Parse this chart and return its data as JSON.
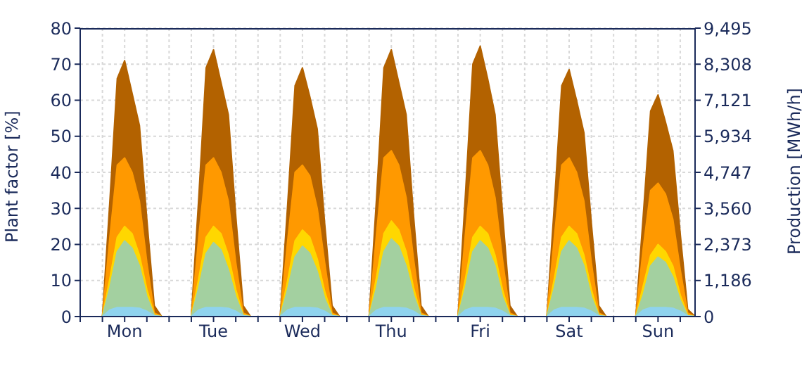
{
  "chart_data": {
    "type": "area",
    "ylabel": "Plant factor [%]",
    "y2label": "Production [MWh/h]",
    "categories": [
      null,
      null,
      null,
      null,
      null,
      null,
      "Mon",
      null,
      null,
      null,
      null,
      null,
      null,
      null,
      null,
      null,
      null,
      null,
      "Tue",
      null,
      null,
      null,
      null,
      null,
      null,
      null,
      null,
      null,
      null,
      null,
      "Wed",
      null,
      null,
      null,
      null,
      null,
      null,
      null,
      null,
      null,
      null,
      null,
      "Thu",
      null,
      null,
      null,
      null,
      null,
      null,
      null,
      null,
      null,
      null,
      null,
      "Fri",
      null,
      null,
      null,
      null,
      null,
      null,
      null,
      null,
      null,
      null,
      null,
      "Sat",
      null,
      null,
      null,
      null,
      null,
      null,
      null,
      null,
      null,
      null,
      null,
      "Sun",
      null,
      null,
      null,
      null,
      null
    ],
    "series": [
      {
        "color": "#b36200",
        "values": [
          0,
          0,
          0,
          0,
          32,
          66,
          71,
          62,
          53,
          27,
          3,
          0,
          0,
          0,
          0,
          0,
          33,
          69,
          74,
          65,
          56,
          28,
          3,
          0,
          0,
          0,
          0,
          0,
          31,
          64,
          69,
          61,
          52,
          26,
          3,
          0,
          0,
          0,
          0,
          0,
          33,
          69,
          74,
          65,
          56,
          28,
          3,
          0,
          0,
          0,
          0,
          0,
          34,
          70,
          75,
          66,
          56,
          29,
          3,
          0,
          0,
          0,
          0,
          0,
          31,
          64,
          68.5,
          60,
          51,
          26,
          3,
          0,
          0,
          0,
          0,
          0,
          28,
          57,
          61.5,
          54,
          46,
          23,
          2,
          0
        ]
      },
      {
        "color": "#ff9900",
        "values": [
          0,
          0,
          0,
          0,
          22,
          42,
          44,
          40,
          32,
          15,
          1,
          0,
          0,
          0,
          0,
          0,
          22,
          42,
          44,
          40,
          32,
          15,
          1,
          0,
          0,
          0,
          0,
          0,
          21,
          40,
          42,
          39,
          30,
          15,
          1,
          0,
          0,
          0,
          0,
          0,
          23,
          44,
          46,
          42,
          33,
          16,
          1,
          0,
          0,
          0,
          0,
          0,
          23,
          44,
          46,
          42,
          33,
          16,
          1,
          0,
          0,
          0,
          0,
          0,
          22,
          42,
          44,
          40,
          32,
          15,
          1,
          0,
          0,
          0,
          0,
          0,
          19,
          35,
          37,
          34,
          27,
          13,
          1,
          0
        ]
      },
      {
        "color": "#ffd700",
        "values": [
          0,
          0,
          0,
          0,
          10.5,
          22,
          25,
          23,
          17,
          7.5,
          0.5,
          0,
          0,
          0,
          0,
          0,
          10.5,
          22,
          25,
          23,
          17,
          7.5,
          0.5,
          0,
          0,
          0,
          0,
          0,
          10,
          21,
          24,
          22,
          16,
          7,
          0.5,
          0,
          0,
          0,
          0,
          0,
          11,
          23,
          26.5,
          24,
          18,
          8,
          0.5,
          0,
          0,
          0,
          0,
          0,
          10.5,
          22,
          25,
          23,
          17,
          7.5,
          0.5,
          0,
          0,
          0,
          0,
          0,
          10.5,
          22,
          25,
          23,
          17,
          7.5,
          0.5,
          0,
          0,
          0,
          0,
          0,
          8.5,
          17,
          20,
          18,
          14,
          6,
          0.4,
          0
        ]
      },
      {
        "color": "#a3d0a0",
        "values": [
          0,
          0,
          0,
          0,
          8,
          18,
          21,
          19,
          14,
          5.5,
          0.3,
          0,
          0,
          0,
          0,
          0,
          8,
          17.5,
          20.5,
          18.5,
          13,
          5.5,
          0.3,
          0,
          0,
          0,
          0,
          0,
          7.5,
          16.5,
          19.5,
          17.5,
          12.5,
          5,
          0.3,
          0,
          0,
          0,
          0,
          0,
          8,
          18,
          21.5,
          19.5,
          14,
          6,
          0.3,
          0,
          0,
          0,
          0,
          0,
          8,
          18,
          21,
          19,
          14,
          5.5,
          0.3,
          0,
          0,
          0,
          0,
          0,
          8,
          18,
          21,
          19,
          14,
          5.5,
          0.3,
          0,
          0,
          0,
          0,
          0,
          6,
          14,
          16.5,
          15,
          11,
          4.5,
          0.2,
          0
        ]
      },
      {
        "color": "#8fd3ee",
        "values": [
          0,
          0,
          0,
          0,
          1.8,
          2.5,
          2.5,
          2.5,
          2.3,
          1.5,
          0.2,
          0,
          0,
          0,
          0,
          0,
          1.8,
          2.5,
          2.5,
          2.5,
          2.3,
          1.5,
          0.2,
          0,
          0,
          0,
          0,
          0,
          1.8,
          2.5,
          2.5,
          2.5,
          2.3,
          1.5,
          0.2,
          0,
          0,
          0,
          0,
          0,
          1.8,
          2.5,
          2.5,
          2.5,
          2.3,
          1.5,
          0.2,
          0,
          0,
          0,
          0,
          0,
          1.8,
          2.5,
          2.5,
          2.5,
          2.3,
          1.5,
          0.2,
          0,
          0,
          0,
          0,
          0,
          1.8,
          2.5,
          2.5,
          2.5,
          2.3,
          1.5,
          0.2,
          0,
          0,
          0,
          0,
          0,
          1.8,
          2.5,
          2.5,
          2.5,
          2.3,
          1.5,
          0.2,
          0
        ]
      }
    ],
    "ylim": [
      0,
      80
    ],
    "yticks": [
      0,
      10,
      20,
      30,
      40,
      50,
      60,
      70,
      80
    ],
    "y2lim": [
      0,
      9495
    ],
    "y2ticks": [
      0,
      {
        "value": 1186,
        "label": "1,186"
      },
      {
        "value": 2373,
        "label": "2,373"
      },
      {
        "value": 3560,
        "label": "3,560"
      },
      {
        "value": 4747,
        "label": "4,747"
      },
      {
        "value": 5934,
        "label": "5,934"
      },
      {
        "value": 7121,
        "label": "7,121"
      },
      {
        "value": 8308,
        "label": "8,308"
      },
      {
        "value": 9495,
        "label": "9,495"
      }
    ],
    "grid": true
  }
}
